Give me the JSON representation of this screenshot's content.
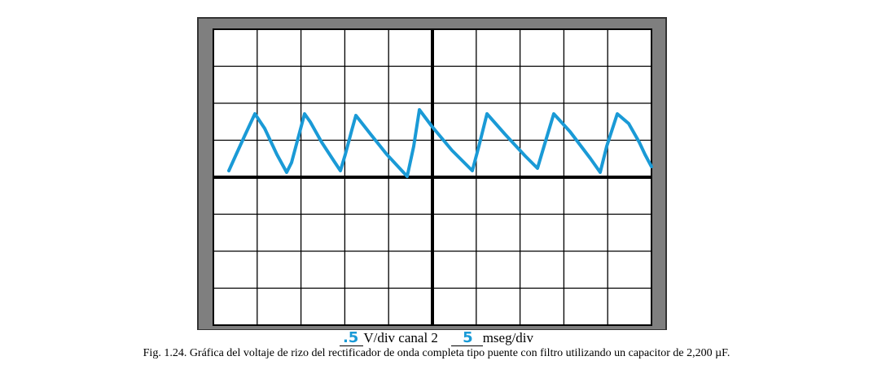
{
  "scope_labels": {
    "volts_value": ".5",
    "volts_unit": "V/div canal 2",
    "time_value": "5",
    "time_unit": "mseg/div"
  },
  "caption": "Fig. 1.24. Gráfica del voltaje de rizo del rectificador de onda completa tipo puente con filtro utilizando un capacitor de 2,200 µF."
}
